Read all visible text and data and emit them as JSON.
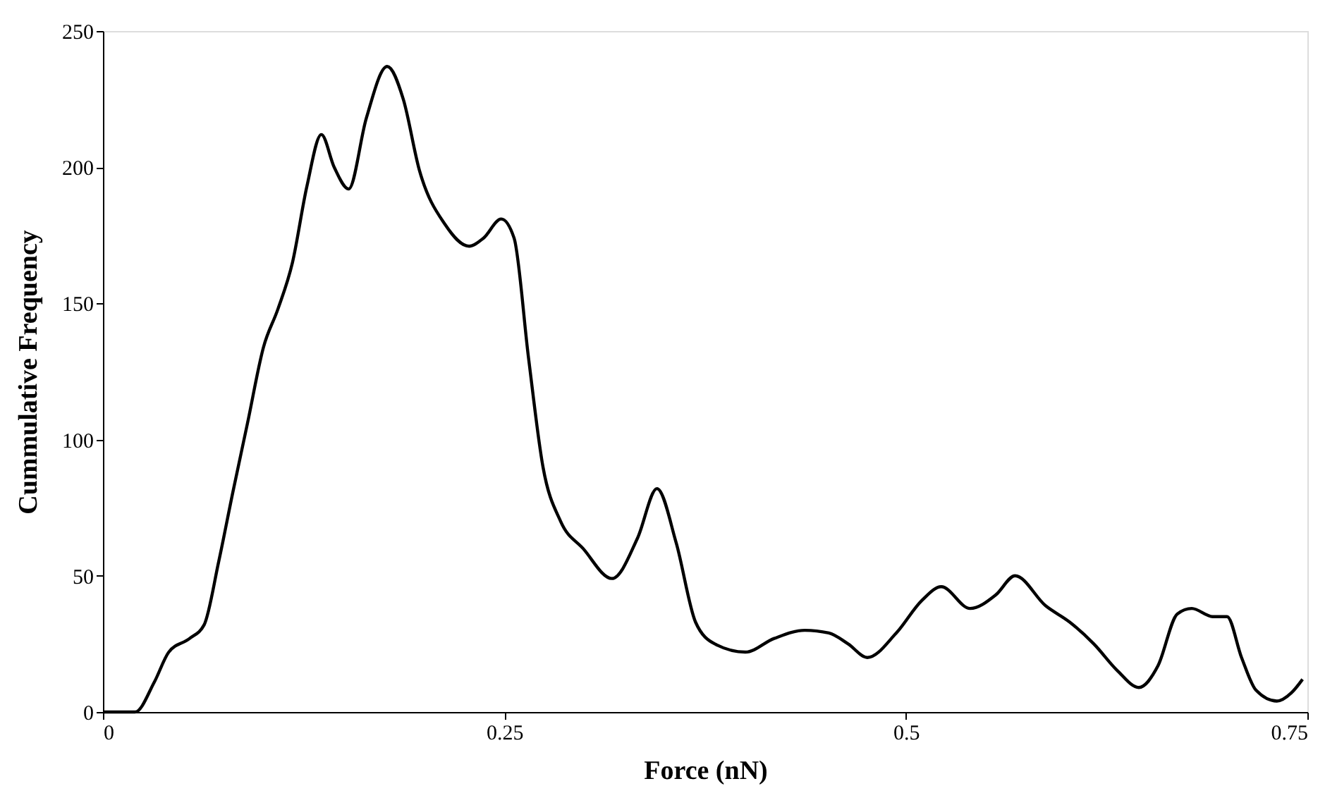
{
  "chart_data": {
    "type": "line",
    "xlabel": "Force (nN)",
    "ylabel": "Cummulative Frequency",
    "xlim": [
      0,
      0.75
    ],
    "xticks": [
      0,
      {
        "value": 0.25,
        "label": "0.25"
      },
      {
        "value": 0.5,
        "label": "0.5"
      },
      {
        "value": 0.75,
        "label": "0.75"
      }
    ],
    "ylim": [
      0,
      250
    ],
    "yticks": [
      0,
      50,
      100,
      150,
      200,
      250
    ],
    "grid": false,
    "line_style": "solid",
    "marker": "none",
    "series": [
      {
        "color": "#000000",
        "x": [
          0,
          0.02,
          0.032,
          0.041,
          0.054,
          0.063,
          0.072,
          0.081,
          0.09,
          0.1,
          0.109,
          0.118,
          0.127,
          0.136,
          0.144,
          0.153,
          0.164,
          0.177,
          0.187,
          0.197,
          0.213,
          0.228,
          0.237,
          0.248,
          0.256,
          0.265,
          0.274,
          0.285,
          0.299,
          0.317,
          0.333,
          0.345,
          0.357,
          0.369,
          0.381,
          0.4,
          0.418,
          0.437,
          0.452,
          0.464,
          0.476,
          0.494,
          0.51,
          0.522,
          0.54,
          0.556,
          0.568,
          0.587,
          0.602,
          0.617,
          0.632,
          0.645,
          0.657,
          0.669,
          0.678,
          0.691,
          0.7,
          0.709,
          0.718,
          0.731,
          0.74,
          0.747
        ],
        "values": [
          0,
          0,
          11,
          22,
          27,
          32,
          55,
          81,
          106,
          134,
          148,
          165,
          193,
          212,
          200,
          192,
          218,
          237,
          225,
          199,
          179,
          171,
          174,
          181,
          174,
          130,
          90,
          70,
          60,
          49,
          64,
          82,
          62,
          33,
          25,
          22,
          27,
          30,
          29,
          25,
          20,
          29,
          41,
          46,
          38,
          43,
          50,
          39,
          33,
          25,
          15,
          9,
          17,
          36,
          38,
          35,
          35,
          20,
          8,
          4,
          7,
          12
        ]
      }
    ]
  }
}
